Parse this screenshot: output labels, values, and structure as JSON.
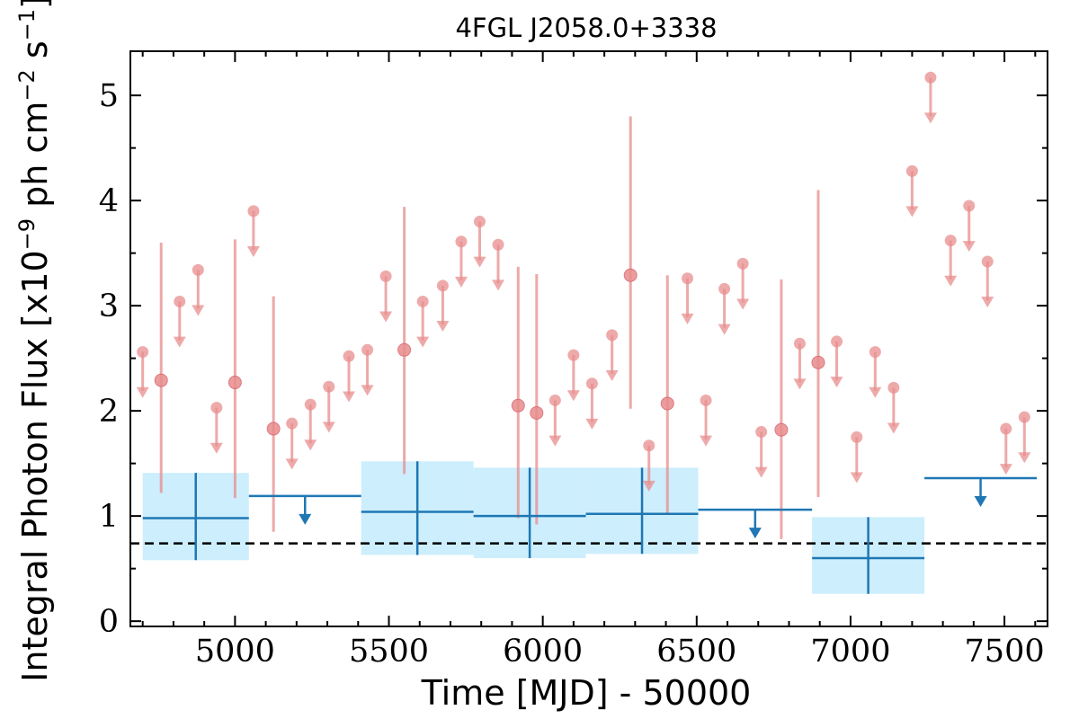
{
  "chart_data": {
    "type": "scatter",
    "title": "4FGL J2058.0+3338",
    "xlabel": "Time [MJD] - 50000",
    "ylabel": "Integral Photon Flux [x10",
    "ylabel_exp1": "−9",
    "ylabel_mid": " ph cm",
    "ylabel_exp2": "−2",
    "ylabel_mid2": " s",
    "ylabel_exp3": "−1",
    "ylabel_end": "]",
    "xlim": [
      4660,
      7640
    ],
    "ylim": [
      -0.05,
      5.42
    ],
    "xticks": [
      5000,
      5500,
      6000,
      6500,
      7000,
      7500
    ],
    "yticks": [
      0,
      1,
      2,
      3,
      4,
      5
    ],
    "reference_line": 0.74,
    "colors": {
      "short_bins": "#e88d8d",
      "long_bins": "#1f77b4",
      "long_band": "#cdeefc",
      "reference": "#000000"
    },
    "short_bins": [
      {
        "t": 4700,
        "flux": 2.56,
        "upper_limit": true
      },
      {
        "t": 4760,
        "flux": 2.29,
        "lo": 1.22,
        "hi": 3.6
      },
      {
        "t": 4820,
        "flux": 3.04,
        "upper_limit": true
      },
      {
        "t": 4880,
        "flux": 3.34,
        "upper_limit": true
      },
      {
        "t": 4940,
        "flux": 2.03,
        "upper_limit": true
      },
      {
        "t": 5000,
        "flux": 2.27,
        "lo": 1.17,
        "hi": 3.63
      },
      {
        "t": 5060,
        "flux": 3.9,
        "upper_limit": true
      },
      {
        "t": 5125,
        "flux": 1.83,
        "lo": 0.85,
        "hi": 3.09
      },
      {
        "t": 5185,
        "flux": 1.88,
        "upper_limit": true
      },
      {
        "t": 5245,
        "flux": 2.06,
        "upper_limit": true
      },
      {
        "t": 5305,
        "flux": 2.23,
        "upper_limit": true
      },
      {
        "t": 5370,
        "flux": 2.52,
        "upper_limit": true
      },
      {
        "t": 5430,
        "flux": 2.58,
        "upper_limit": true
      },
      {
        "t": 5490,
        "flux": 3.28,
        "upper_limit": true
      },
      {
        "t": 5550,
        "flux": 2.58,
        "lo": 1.4,
        "hi": 3.94
      },
      {
        "t": 5610,
        "flux": 3.04,
        "upper_limit": true
      },
      {
        "t": 5675,
        "flux": 3.19,
        "upper_limit": true
      },
      {
        "t": 5735,
        "flux": 3.61,
        "upper_limit": true
      },
      {
        "t": 5795,
        "flux": 3.8,
        "upper_limit": true
      },
      {
        "t": 5855,
        "flux": 3.58,
        "upper_limit": true
      },
      {
        "t": 5920,
        "flux": 2.05,
        "lo": 0.98,
        "hi": 3.37
      },
      {
        "t": 5980,
        "flux": 1.98,
        "lo": 0.92,
        "hi": 3.3
      },
      {
        "t": 6040,
        "flux": 2.1,
        "upper_limit": true
      },
      {
        "t": 6100,
        "flux": 2.53,
        "upper_limit": true
      },
      {
        "t": 6160,
        "flux": 2.26,
        "upper_limit": true
      },
      {
        "t": 6225,
        "flux": 2.72,
        "upper_limit": true
      },
      {
        "t": 6285,
        "flux": 3.29,
        "lo": 2.02,
        "hi": 4.8
      },
      {
        "t": 6345,
        "flux": 1.67,
        "upper_limit": true
      },
      {
        "t": 6405,
        "flux": 2.07,
        "lo": 1.02,
        "hi": 3.29
      },
      {
        "t": 6470,
        "flux": 3.26,
        "upper_limit": true
      },
      {
        "t": 6530,
        "flux": 2.1,
        "upper_limit": true
      },
      {
        "t": 6590,
        "flux": 3.16,
        "upper_limit": true
      },
      {
        "t": 6650,
        "flux": 3.4,
        "upper_limit": true
      },
      {
        "t": 6710,
        "flux": 1.8,
        "upper_limit": true
      },
      {
        "t": 6775,
        "flux": 1.82,
        "lo": 0.78,
        "hi": 3.25
      },
      {
        "t": 6835,
        "flux": 2.64,
        "upper_limit": true
      },
      {
        "t": 6895,
        "flux": 2.46,
        "lo": 1.18,
        "hi": 4.1
      },
      {
        "t": 6955,
        "flux": 2.66,
        "upper_limit": true
      },
      {
        "t": 7020,
        "flux": 1.75,
        "upper_limit": true
      },
      {
        "t": 7080,
        "flux": 2.56,
        "upper_limit": true
      },
      {
        "t": 7140,
        "flux": 2.22,
        "upper_limit": true
      },
      {
        "t": 7200,
        "flux": 4.28,
        "upper_limit": true
      },
      {
        "t": 7260,
        "flux": 5.17,
        "upper_limit": true
      },
      {
        "t": 7325,
        "flux": 3.62,
        "upper_limit": true
      },
      {
        "t": 7385,
        "flux": 3.95,
        "upper_limit": true
      },
      {
        "t": 7445,
        "flux": 3.42,
        "upper_limit": true
      },
      {
        "t": 7505,
        "flux": 1.83,
        "upper_limit": true
      },
      {
        "t": 7565,
        "flux": 1.94,
        "upper_limit": true
      }
    ],
    "long_bins": [
      {
        "t0": 4700,
        "t1": 5045,
        "flux": 0.98,
        "lo": 0.58,
        "hi": 1.41,
        "upper_limit": false
      },
      {
        "t0": 5045,
        "t1": 5410,
        "flux": 1.19,
        "upper_limit": true
      },
      {
        "t0": 5410,
        "t1": 5775,
        "flux": 1.04,
        "lo": 0.63,
        "hi": 1.52,
        "upper_limit": false
      },
      {
        "t0": 5775,
        "t1": 6140,
        "flux": 1.0,
        "lo": 0.6,
        "hi": 1.46,
        "upper_limit": false
      },
      {
        "t0": 6140,
        "t1": 6505,
        "flux": 1.02,
        "lo": 0.64,
        "hi": 1.46,
        "upper_limit": false
      },
      {
        "t0": 6505,
        "t1": 6875,
        "flux": 1.06,
        "upper_limit": true
      },
      {
        "t0": 6875,
        "t1": 7240,
        "flux": 0.6,
        "lo": 0.26,
        "hi": 0.99,
        "upper_limit": false
      },
      {
        "t0": 7240,
        "t1": 7605,
        "flux": 1.36,
        "upper_limit": true
      }
    ]
  }
}
